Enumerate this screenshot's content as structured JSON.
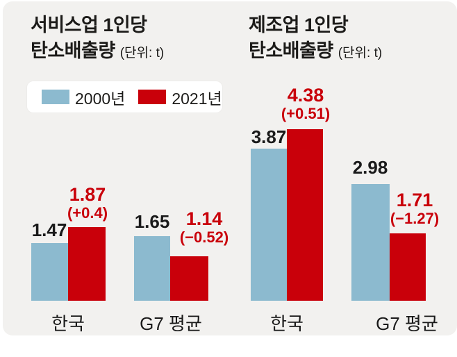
{
  "colors": {
    "panel_bg": "#f2f1ef",
    "bar_2000": "#8cbacf",
    "bar_2021": "#c9000a",
    "text_dark": "#1a1a1a",
    "text_red": "#c9000a"
  },
  "charts": [
    {
      "title_line1": "서비스업 1인당",
      "title_line2": "탄소배출량",
      "unit": "(단위: t)"
    },
    {
      "title_line1": "제조업 1인당",
      "title_line2": "탄소배출량",
      "unit": "(단위: t)"
    }
  ],
  "legend": {
    "items": [
      {
        "label": "2000년",
        "color": "#8cbacf"
      },
      {
        "label": "2021년",
        "color": "#c9000a"
      }
    ]
  },
  "chart_data": [
    {
      "type": "bar",
      "title": "서비스업 1인당 탄소배출량 (단위: t)",
      "categories": [
        "한국",
        "G7 평균"
      ],
      "series": [
        {
          "name": "2000년",
          "values": [
            1.47,
            1.65
          ]
        },
        {
          "name": "2021년",
          "values": [
            1.87,
            1.14
          ]
        }
      ],
      "value_labels_2000": [
        "1.47",
        "1.65"
      ],
      "value_labels_2021": [
        "1.87",
        "1.14"
      ],
      "annotations": [
        "(+0.4)",
        "(−0.52)"
      ],
      "ylim": [
        0,
        5
      ],
      "grid": false,
      "legend_position": "top-left"
    },
    {
      "type": "bar",
      "title": "제조업 1인당 탄소배출량 (단위: t)",
      "categories": [
        "한국",
        "G7 평균"
      ],
      "series": [
        {
          "name": "2000년",
          "values": [
            3.87,
            2.98
          ]
        },
        {
          "name": "2021년",
          "values": [
            4.38,
            1.71
          ]
        }
      ],
      "value_labels_2000": [
        "3.87",
        "2.98"
      ],
      "value_labels_2021": [
        "4.38",
        "1.71"
      ],
      "annotations": [
        "(+0.51)",
        "(−1.27)"
      ],
      "ylim": [
        0,
        5
      ],
      "grid": false,
      "legend_position": "shared"
    }
  ]
}
